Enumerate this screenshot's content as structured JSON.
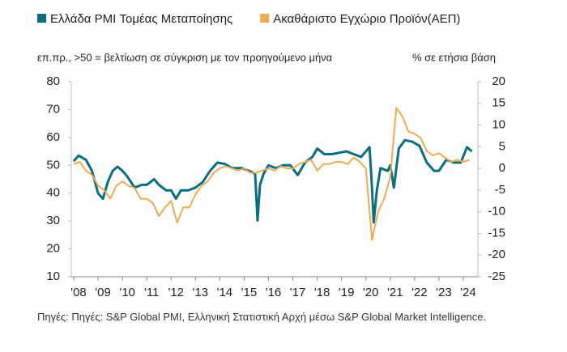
{
  "chart_data": {
    "type": "line",
    "legend": "top",
    "subtitle_left": "επ.πρ., >50 = βελτίωση σε σύγκριση με τον προηγούμενο μήνα",
    "subtitle_right": "% σε ετήσια βάση",
    "source": "Πηγές: Πηγές: S&P Global PMI, Ελληνική Στατιστική Αρχή μέσω S&P Global Market Intelligence.",
    "xlim": [
      2007.9,
      2024.6
    ],
    "xticks": [
      {
        "value": 2008,
        "label": "'08"
      },
      {
        "value": 2009,
        "label": "'09"
      },
      {
        "value": 2010,
        "label": "'10"
      },
      {
        "value": 2011,
        "label": "'11"
      },
      {
        "value": 2012,
        "label": "'12"
      },
      {
        "value": 2013,
        "label": "'13"
      },
      {
        "value": 2014,
        "label": "'14"
      },
      {
        "value": 2015,
        "label": "'15"
      },
      {
        "value": 2016,
        "label": "'16"
      },
      {
        "value": 2017,
        "label": "'17"
      },
      {
        "value": 2018,
        "label": "'18"
      },
      {
        "value": 2019,
        "label": "'19"
      },
      {
        "value": 2020,
        "label": "'20"
      },
      {
        "value": 2021,
        "label": "'21"
      },
      {
        "value": 2022,
        "label": "'22"
      },
      {
        "value": 2023,
        "label": "'23"
      },
      {
        "value": 2024,
        "label": "'24"
      }
    ],
    "ylim": [
      10,
      80
    ],
    "yticks": [
      10,
      20,
      30,
      40,
      50,
      60,
      70,
      80
    ],
    "y2lim": [
      -25,
      20
    ],
    "y2ticks": [
      -25,
      -20,
      -15,
      -10,
      -5,
      0,
      5,
      10,
      15,
      20
    ],
    "series": [
      {
        "name": "Ελλάδα PMI Τομέας Μεταποίησης",
        "color": "#0a6e80",
        "axis": "y",
        "x": [
          2008.0,
          2008.2,
          2008.5,
          2008.75,
          2009.0,
          2009.2,
          2009.4,
          2009.6,
          2009.8,
          2010.0,
          2010.2,
          2010.5,
          2010.8,
          2011.0,
          2011.3,
          2011.5,
          2011.8,
          2012.0,
          2012.2,
          2012.4,
          2012.7,
          2013.0,
          2013.3,
          2013.6,
          2013.9,
          2014.2,
          2014.5,
          2014.9,
          2015.2,
          2015.45,
          2015.55,
          2015.65,
          2015.8,
          2016.0,
          2016.3,
          2016.6,
          2016.9,
          2017.2,
          2017.5,
          2017.8,
          2018.0,
          2018.3,
          2018.6,
          2018.9,
          2019.2,
          2019.5,
          2019.8,
          2020.0,
          2020.15,
          2020.25,
          2020.32,
          2020.45,
          2020.6,
          2020.9,
          2021.0,
          2021.15,
          2021.35,
          2021.6,
          2021.9,
          2022.2,
          2022.5,
          2022.8,
          2023.0,
          2023.3,
          2023.6,
          2023.9,
          2024.15,
          2024.35
        ],
        "values": [
          51.5,
          53.5,
          52,
          48,
          40,
          38,
          44,
          48,
          49.5,
          48,
          46,
          42,
          43,
          43,
          45,
          43,
          41,
          41,
          38,
          41,
          41,
          42,
          44,
          48,
          51,
          50.5,
          49,
          49,
          48,
          47,
          30.2,
          43,
          47,
          50,
          49,
          50,
          50,
          46.5,
          51,
          53,
          56,
          54,
          54,
          54.5,
          55,
          54,
          53,
          55,
          56.5,
          42,
          29.5,
          41,
          49,
          48,
          50,
          42,
          56,
          59,
          58.5,
          57,
          51,
          48,
          48,
          52,
          51,
          51,
          56.5,
          55
        ]
      },
      {
        "name": "Ακαθάριστο Εγχώριο Προϊόν(ΑΕΠ)",
        "color": "#f0ab52",
        "axis": "y2",
        "x": [
          2008.0,
          2008.25,
          2008.5,
          2008.75,
          2009.0,
          2009.25,
          2009.5,
          2009.75,
          2010.0,
          2010.25,
          2010.5,
          2010.75,
          2011.0,
          2011.25,
          2011.5,
          2011.75,
          2012.0,
          2012.25,
          2012.5,
          2012.75,
          2013.0,
          2013.25,
          2013.5,
          2013.75,
          2014.0,
          2014.25,
          2014.5,
          2014.75,
          2015.0,
          2015.25,
          2015.5,
          2015.75,
          2016.0,
          2016.25,
          2016.5,
          2016.75,
          2017.0,
          2017.25,
          2017.5,
          2017.75,
          2018.0,
          2018.25,
          2018.5,
          2018.75,
          2019.0,
          2019.25,
          2019.5,
          2019.75,
          2020.0,
          2020.25,
          2020.5,
          2020.75,
          2021.0,
          2021.25,
          2021.5,
          2021.75,
          2022.0,
          2022.25,
          2022.5,
          2022.75,
          2023.0,
          2023.25,
          2023.5,
          2023.75,
          2024.0,
          2024.25
        ],
        "values": [
          1,
          1.5,
          -0.5,
          -1.5,
          -4,
          -5,
          -7,
          -4,
          -3,
          -4,
          -4.5,
          -7,
          -7,
          -8,
          -11,
          -9,
          -7.5,
          -12.5,
          -9,
          -9,
          -6,
          -4,
          -3,
          -1,
          0,
          0.5,
          0,
          -0.5,
          0,
          -1,
          -1,
          -0.5,
          0,
          -0.5,
          0.5,
          0,
          0,
          1,
          1.5,
          2,
          -0.5,
          1,
          1,
          1.5,
          1.5,
          1,
          2.5,
          1.5,
          0,
          -16.5,
          -10,
          -7,
          -2,
          14,
          12,
          8.5,
          8,
          7,
          4,
          3,
          3.5,
          2.5,
          1.5,
          2,
          1.5,
          2
        ]
      }
    ]
  }
}
